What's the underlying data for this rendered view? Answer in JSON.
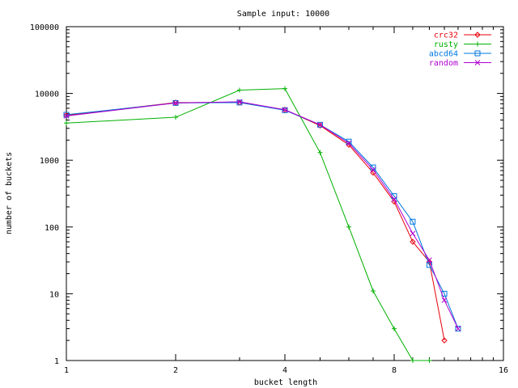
{
  "chart_data": {
    "type": "line",
    "title": "Sample input: 10000",
    "xlabel": "bucket length",
    "ylabel": "number of buckets",
    "x_scale": "log2",
    "y_scale": "log10",
    "xlim": [
      1,
      16
    ],
    "ylim": [
      1,
      100000
    ],
    "x_ticks": [
      {
        "value": 1,
        "label": "1"
      },
      {
        "value": 2,
        "label": "2"
      },
      {
        "value": 4,
        "label": "4"
      },
      {
        "value": 8,
        "label": "8"
      },
      {
        "value": 16,
        "label": "16"
      }
    ],
    "y_ticks": [
      {
        "value": 1,
        "label": "1"
      },
      {
        "value": 10,
        "label": "10"
      },
      {
        "value": 100,
        "label": "100"
      },
      {
        "value": 1000,
        "label": "1000"
      },
      {
        "value": 10000,
        "label": "10000"
      },
      {
        "value": 100000,
        "label": "100000"
      }
    ],
    "grid": false,
    "legend_position": "top-right",
    "series": [
      {
        "name": "crc32",
        "color": "#e8000b",
        "marker": "diamond",
        "points": [
          [
            1,
            4700
          ],
          [
            2,
            7300
          ],
          [
            3,
            7300
          ],
          [
            4,
            5700
          ],
          [
            5,
            3300
          ],
          [
            6,
            1700
          ],
          [
            7,
            650
          ],
          [
            8,
            240
          ],
          [
            9,
            60
          ],
          [
            10,
            30
          ],
          [
            11,
            2
          ]
        ]
      },
      {
        "name": "rusty",
        "color": "#00b000",
        "marker": "plus",
        "points": [
          [
            1,
            3600
          ],
          [
            2,
            4400
          ],
          [
            3,
            11200
          ],
          [
            4,
            11800
          ],
          [
            5,
            1300
          ],
          [
            6,
            100
          ],
          [
            7,
            11
          ],
          [
            8,
            3
          ],
          [
            9,
            1
          ],
          [
            10,
            1
          ]
        ]
      },
      {
        "name": "abcd64",
        "color": "#0077dd",
        "marker": "square",
        "points": [
          [
            1,
            4800
          ],
          [
            2,
            7200
          ],
          [
            3,
            7300
          ],
          [
            4,
            5600
          ],
          [
            5,
            3400
          ],
          [
            6,
            1900
          ],
          [
            7,
            780
          ],
          [
            8,
            290
          ],
          [
            9,
            120
          ],
          [
            10,
            27
          ],
          [
            11,
            10
          ],
          [
            12,
            3
          ]
        ]
      },
      {
        "name": "random",
        "color": "#b000d0",
        "marker": "x",
        "points": [
          [
            1,
            4600
          ],
          [
            2,
            7200
          ],
          [
            3,
            7500
          ],
          [
            4,
            5700
          ],
          [
            5,
            3400
          ],
          [
            6,
            1800
          ],
          [
            7,
            720
          ],
          [
            8,
            260
          ],
          [
            9,
            80
          ],
          [
            10,
            32
          ],
          [
            11,
            8
          ],
          [
            12,
            3
          ]
        ]
      }
    ]
  }
}
